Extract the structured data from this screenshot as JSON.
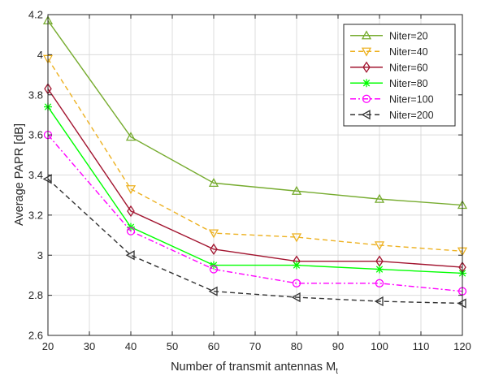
{
  "chart_data": {
    "type": "line",
    "title": "",
    "xlabel": "Number of transmit antennas M",
    "xlabel_subscript": "t",
    "ylabel": "Average PAPR [dB]",
    "x": [
      20,
      40,
      60,
      80,
      100,
      120
    ],
    "xlim": [
      20,
      120
    ],
    "ylim": [
      2.6,
      4.2
    ],
    "xticks": [
      20,
      30,
      40,
      50,
      60,
      70,
      80,
      90,
      100,
      110,
      120
    ],
    "yticks": [
      2.6,
      2.8,
      3,
      3.2,
      3.4,
      3.6,
      3.8,
      4,
      4.2
    ],
    "grid": true,
    "legend_position": "top-right",
    "series": [
      {
        "name": "Niter=20",
        "values": [
          4.17,
          3.59,
          3.36,
          3.32,
          3.28,
          3.25
        ],
        "color": "#77ac30",
        "dash": "solid",
        "marker": "triangle-up"
      },
      {
        "name": "Niter=40",
        "values": [
          3.98,
          3.33,
          3.11,
          3.09,
          3.05,
          3.02
        ],
        "color": "#edb120",
        "dash": "dashed",
        "marker": "triangle-down"
      },
      {
        "name": "Niter=60",
        "values": [
          3.83,
          3.22,
          3.03,
          2.97,
          2.97,
          2.94
        ],
        "color": "#a2142f",
        "dash": "solid",
        "marker": "diamond"
      },
      {
        "name": "Niter=80",
        "values": [
          3.74,
          3.14,
          2.95,
          2.95,
          2.93,
          2.91
        ],
        "color": "#00ff00",
        "dash": "solid",
        "marker": "asterisk"
      },
      {
        "name": "Niter=100",
        "values": [
          3.6,
          3.12,
          2.93,
          2.86,
          2.86,
          2.82
        ],
        "color": "#ff00ff",
        "dash": "dashdot",
        "marker": "circle"
      },
      {
        "name": "Niter=200",
        "values": [
          3.38,
          3.0,
          2.82,
          2.79,
          2.77,
          2.76
        ],
        "color": "#333333",
        "dash": "dashed",
        "marker": "triangle-left"
      }
    ]
  }
}
